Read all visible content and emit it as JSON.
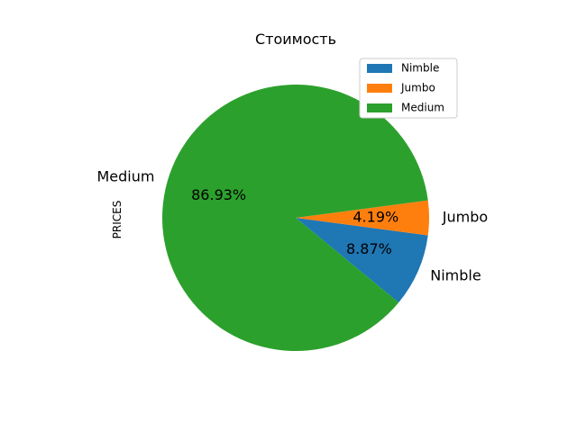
{
  "chart_data": {
    "type": "pie",
    "title": "Стоимость",
    "ylabel": "PRICES",
    "legend_position": "top-right",
    "slices": [
      {
        "label": "Nimble",
        "value": 8.87,
        "pct_label": "8.87%",
        "color": "#1f77b4"
      },
      {
        "label": "Jumbo",
        "value": 4.19,
        "pct_label": "4.19%",
        "color": "#ff7f0e"
      },
      {
        "label": "Medium",
        "value": 86.93,
        "pct_label": "86.93%",
        "color": "#2ca02c"
      }
    ]
  }
}
